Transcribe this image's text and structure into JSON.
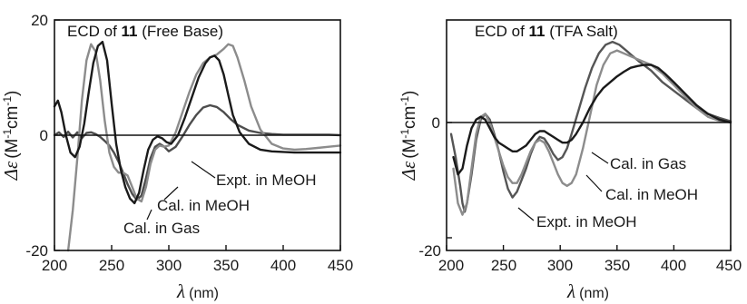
{
  "chart_data": [
    {
      "type": "line",
      "title": {
        "prefix": "ECD of ",
        "compound": "11",
        "suffix": " (Free Base)"
      },
      "xlabel": {
        "symbol": "λ",
        "unit": "(nm)"
      },
      "ylabel": {
        "symbol": "Δε",
        "unit_parts": [
          "(M",
          "-1",
          "cm",
          "-1",
          ")"
        ]
      },
      "xlim": [
        200,
        450
      ],
      "ylim": [
        -20,
        20
      ],
      "xticks": [
        "200",
        "250",
        "300",
        "350",
        "400",
        "450"
      ],
      "yticks": [
        {
          "value": 20,
          "label": "20"
        },
        {
          "value": 0,
          "label": "0"
        },
        {
          "value": -20,
          "label": "-20"
        }
      ],
      "grid": false,
      "zero_line": true,
      "series": [
        {
          "name": "Expt. in MeOH",
          "color": "#4d4d4d",
          "x": [
            200,
            204,
            208,
            212,
            216,
            220,
            224,
            228,
            232,
            236,
            240,
            244,
            248,
            252,
            256,
            260,
            264,
            268,
            272,
            276,
            280,
            284,
            288,
            292,
            296,
            300,
            306,
            312,
            318,
            324,
            330,
            336,
            342,
            348,
            354,
            360,
            370,
            380,
            390,
            400,
            410,
            420,
            430,
            440,
            450
          ],
          "y": [
            0,
            0.5,
            -0.3,
            0.6,
            -0.4,
            0.5,
            -0.5,
            0.4,
            0.5,
            0.2,
            -0.3,
            -1.0,
            -1.8,
            -3.0,
            -4.6,
            -6.5,
            -8.5,
            -10.2,
            -11.2,
            -10.5,
            -7.5,
            -4.0,
            -2.0,
            -1.5,
            -2.0,
            -2.8,
            -2.0,
            -0.2,
            1.8,
            3.5,
            4.8,
            5.2,
            4.9,
            4.0,
            2.8,
            1.8,
            0.8,
            0.4,
            0.2,
            0.1,
            0.1,
            0.1,
            0.1,
            0.1,
            0
          ]
        },
        {
          "name": "Cal. in MeOH",
          "color": "#8c8c8c",
          "x": [
            212,
            216,
            220,
            224,
            228,
            232,
            236,
            240,
            244,
            248,
            252,
            256,
            260,
            264,
            268,
            272,
            276,
            280,
            284,
            288,
            292,
            296,
            300,
            306,
            312,
            318,
            324,
            330,
            336,
            342,
            348,
            352,
            356,
            360,
            366,
            372,
            380,
            390,
            400,
            410,
            420,
            430,
            440,
            450
          ],
          "y": [
            -20,
            -13,
            -4,
            6,
            13,
            15.8,
            14.5,
            9.5,
            2.5,
            -3.0,
            -5.5,
            -6.5,
            -6.5,
            -7.0,
            -9.0,
            -11.0,
            -11.5,
            -9.0,
            -5.0,
            -2.5,
            -1.8,
            -2.0,
            -1.8,
            0.5,
            4.0,
            7.5,
            10.5,
            12.5,
            13.5,
            14.0,
            15.0,
            15.8,
            15.5,
            13.5,
            9.5,
            5.0,
            1.0,
            -1.5,
            -2.3,
            -2.5,
            -2.4,
            -2.2,
            -2.0,
            -1.8
          ]
        },
        {
          "name": "Cal. in Gas",
          "color": "#1a1a1a",
          "x": [
            200,
            203,
            206,
            210,
            214,
            218,
            222,
            226,
            230,
            234,
            238,
            242,
            246,
            250,
            254,
            258,
            262,
            266,
            270,
            274,
            278,
            282,
            286,
            290,
            294,
            298,
            302,
            308,
            314,
            320,
            326,
            332,
            336,
            340,
            344,
            348,
            352,
            356,
            362,
            370,
            380,
            390,
            400,
            410,
            420,
            430,
            440,
            450
          ],
          "y": [
            5,
            6,
            4,
            0,
            -3,
            -3.8,
            -2.0,
            2.0,
            7.5,
            12.5,
            15.5,
            16.2,
            13.0,
            5.5,
            -1.5,
            -6.0,
            -9.0,
            -11.0,
            -11.8,
            -10.0,
            -6.0,
            -2.5,
            -0.8,
            -0.2,
            -0.5,
            -1.2,
            -1.5,
            0.0,
            3.0,
            6.5,
            10.0,
            12.5,
            13.5,
            13.8,
            13.0,
            10.5,
            7.0,
            3.5,
            0.5,
            -1.5,
            -2.5,
            -2.8,
            -2.9,
            -3.0,
            -3.0,
            -3.0,
            -3.0,
            -3.0
          ]
        }
      ],
      "annotations": [
        "Expt. in MeOH",
        "Cal. in MeOH",
        "Cal. in Gas"
      ]
    },
    {
      "type": "line",
      "title": {
        "prefix": "ECD of ",
        "compound": "11",
        "suffix": " (TFA Salt)"
      },
      "xlabel": {
        "symbol": "λ",
        "unit": "(nm)"
      },
      "ylabel": {
        "symbol": "Δε",
        "unit_parts": [
          "(M",
          "-1",
          "cm",
          "-1",
          ")"
        ]
      },
      "xlim": [
        200,
        450
      ],
      "ylim": [
        -20,
        20
      ],
      "xticks": [
        "200",
        "250",
        "300",
        "350",
        "400",
        "450"
      ],
      "yticks": [
        {
          "value": 0,
          "label": "0"
        },
        {
          "value": -20,
          "label": "-20"
        }
      ],
      "grid": false,
      "zero_line": true,
      "series": [
        {
          "name": "Expt. in MeOH",
          "color": "#555555",
          "x": [
            204,
            208,
            212,
            214,
            216,
            218,
            222,
            226,
            230,
            234,
            238,
            242,
            246,
            250,
            254,
            258,
            262,
            266,
            270,
            274,
            278,
            282,
            286,
            290,
            294,
            298,
            302,
            306,
            310,
            316,
            322,
            328,
            334,
            340,
            346,
            352,
            358,
            364,
            370,
            380,
            390,
            400,
            410,
            420,
            430,
            440,
            450
          ],
          "y": [
            -2,
            -6,
            -11,
            -14,
            -15.5,
            -14,
            -9,
            -3,
            0.5,
            1.5,
            0.5,
            -2,
            -5,
            -8.5,
            -11.5,
            -13.0,
            -12.0,
            -10.0,
            -8.0,
            -5.5,
            -3.5,
            -2.5,
            -2.8,
            -4.0,
            -5.5,
            -6.5,
            -6.0,
            -4.5,
            -2.0,
            2.0,
            6.0,
            9.5,
            12.0,
            13.5,
            14.0,
            13.5,
            12.5,
            11.5,
            10.5,
            9.0,
            7.0,
            5.5,
            4.0,
            2.5,
            1.5,
            0.8,
            0.2
          ]
        },
        {
          "name": "Cal. in MeOH",
          "color": "#8c8c8c",
          "x": [
            206,
            210,
            214,
            218,
            222,
            226,
            230,
            234,
            238,
            242,
            246,
            250,
            254,
            258,
            262,
            266,
            270,
            274,
            278,
            282,
            286,
            290,
            294,
            298,
            302,
            306,
            310,
            314,
            320,
            326,
            332,
            338,
            344,
            350,
            356,
            362,
            368,
            374,
            380,
            390,
            400,
            410,
            420,
            430,
            440,
            450
          ],
          "y": [
            -8,
            -14,
            -16,
            -14,
            -8,
            -2,
            1.0,
            1.5,
            0,
            -2.5,
            -5,
            -7.5,
            -9.5,
            -10.5,
            -10.5,
            -9.0,
            -7.0,
            -5.0,
            -3.5,
            -3.0,
            -3.5,
            -5.0,
            -7.0,
            -9.0,
            -10.5,
            -11.0,
            -10.5,
            -9.0,
            -4.5,
            1.0,
            6.5,
            10.0,
            12.0,
            12.5,
            12.0,
            11.5,
            11.0,
            10.5,
            10.0,
            8.5,
            6.5,
            4.5,
            2.5,
            1.0,
            0.3,
            0.0
          ]
        },
        {
          "name": "Cal. in Gas",
          "color": "#1a1a1a",
          "x": [
            206,
            210,
            214,
            218,
            222,
            226,
            230,
            234,
            238,
            242,
            246,
            250,
            254,
            258,
            262,
            266,
            270,
            274,
            278,
            282,
            286,
            290,
            294,
            298,
            302,
            306,
            310,
            314,
            320,
            326,
            332,
            338,
            344,
            350,
            356,
            362,
            368,
            374,
            380,
            386,
            392,
            400,
            410,
            420,
            430,
            440,
            450
          ],
          "y": [
            -6,
            -9,
            -8,
            -4,
            -1,
            0.5,
            1.0,
            0.5,
            -1.0,
            -2.5,
            -3.5,
            -4.0,
            -4.5,
            -5.0,
            -5.0,
            -4.5,
            -4.0,
            -3.0,
            -2.0,
            -1.5,
            -1.5,
            -2.0,
            -2.5,
            -3.0,
            -3.5,
            -3.5,
            -3.0,
            -2.0,
            0.0,
            2.5,
            4.5,
            6.0,
            7.0,
            8.0,
            8.8,
            9.5,
            9.8,
            10.0,
            10.0,
            9.5,
            8.5,
            7.0,
            5.0,
            3.0,
            1.5,
            0.5,
            0.0
          ]
        }
      ],
      "annotations": [
        "Cal. in Gas",
        "Cal. in MeOH",
        "Expt. in MeOH"
      ]
    }
  ]
}
